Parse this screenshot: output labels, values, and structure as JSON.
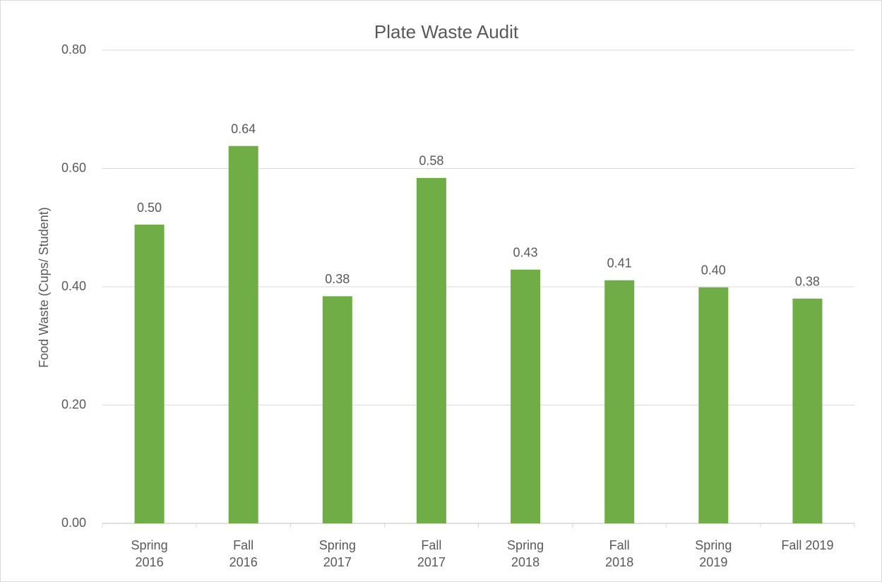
{
  "chart_data": {
    "type": "bar",
    "title": "Plate Waste Audit",
    "y_label": "Food Waste (Cups/ Student)",
    "categories": [
      "Spring\n2016",
      "Fall\n2016",
      "Spring\n2017",
      "Fall\n2017",
      "Spring\n2018",
      "Fall\n2018",
      "Spring\n2019",
      "Fall 2019"
    ],
    "values": [
      0.505,
      0.638,
      0.384,
      0.584,
      0.429,
      0.411,
      0.399,
      0.38
    ],
    "value_labels": [
      "0.50",
      "0.64",
      "0.38",
      "0.58",
      "0.43",
      "0.41",
      "0.40",
      "0.38"
    ],
    "color": "#70ad47",
    "ylim": [
      0,
      0.8
    ],
    "yticks": [
      {
        "value": 0,
        "label": "0.00"
      },
      {
        "value": 0.2,
        "label": "0.20"
      },
      {
        "value": 0.4,
        "label": "0.40"
      },
      {
        "value": 0.6,
        "label": "0.60"
      },
      {
        "value": 0.8,
        "label": "0.80"
      }
    ],
    "grid": true
  }
}
